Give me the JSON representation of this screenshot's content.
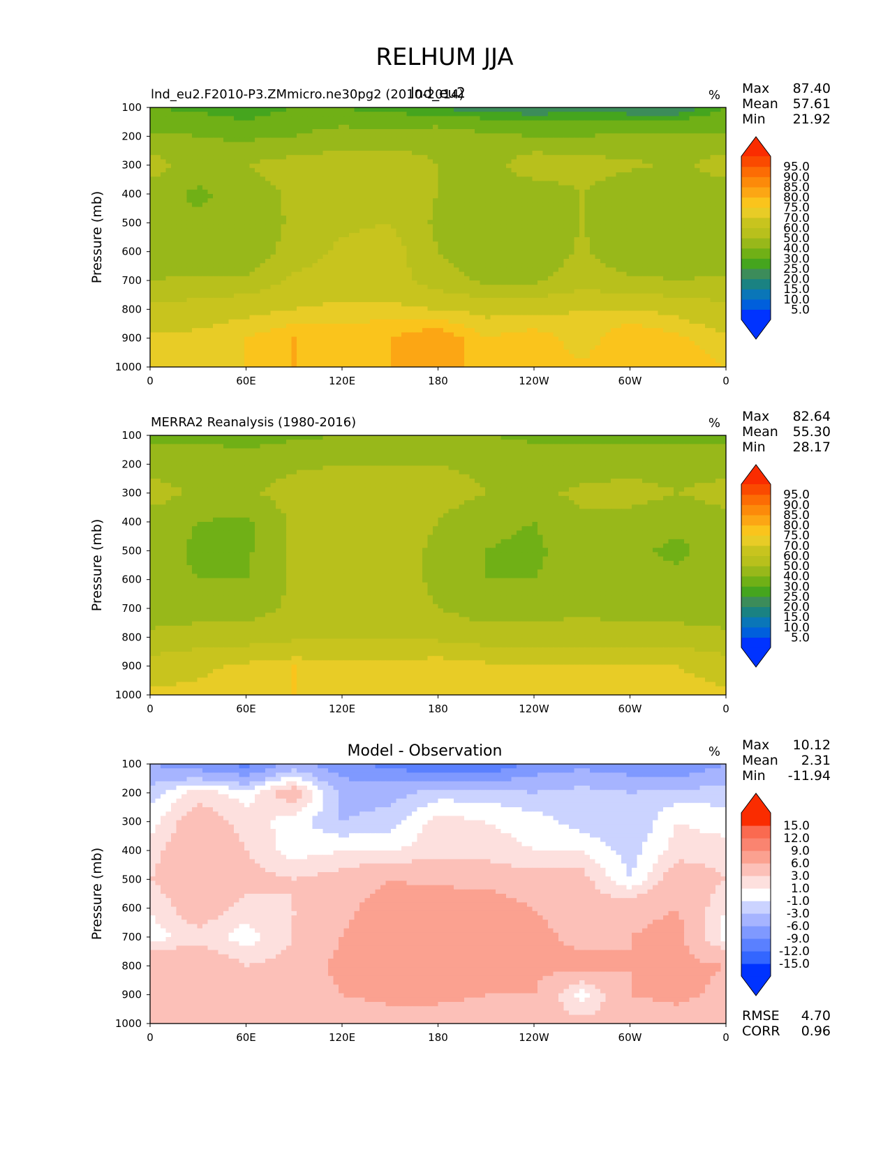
{
  "figure_title": "RELHUM JJA",
  "colors": {
    "abs_levels": [
      "#0033ff",
      "#005fdc",
      "#0a76b8",
      "#1a8282",
      "#3c8c5a",
      "#45a51e",
      "#70b016",
      "#98b81a",
      "#b8c01c",
      "#c8c41e",
      "#e8cc26",
      "#fac41c",
      "#fca614",
      "#fc8a0a",
      "#fc6c04",
      "#fa4a00",
      "#fa2c00"
    ],
    "diff_levels": [
      "#0033ff",
      "#3366ff",
      "#5a80ff",
      "#7f99ff",
      "#a6b4ff",
      "#cbd3ff",
      "#e6eaff",
      "#ffffff",
      "#ffffff",
      "#fde0de",
      "#fcc0b8",
      "#fba190",
      "#fa8470",
      "#fa6a50",
      "#fa5030",
      "#fa2c00"
    ]
  },
  "chart_data": [
    {
      "type": "contourf",
      "panel": "model",
      "title_left": "lnd_eu2.F2010-P3.ZMmicro.ne30pg2 (2010-2014)",
      "title_center": "lnd_eu2",
      "units": "%",
      "ylabel": "Pressure (mb)",
      "xlabel": "",
      "xlim": [
        0,
        360
      ],
      "ylim": [
        1000,
        100
      ],
      "xticks": [
        "0",
        "60E",
        "120E",
        "180",
        "120W",
        "60W",
        "0"
      ],
      "yticks": [
        "100",
        "200",
        "300",
        "400",
        "500",
        "600",
        "700",
        "800",
        "900",
        "1000"
      ],
      "stats": {
        "max_label": "Max",
        "max": "87.40",
        "mean_label": "Mean",
        "mean": "57.61",
        "min_label": "Min",
        "min": "21.92"
      },
      "colorbar_levels": [
        "5.0",
        "10.0",
        "15.0",
        "20.0",
        "25.0",
        "30.0",
        "40.0",
        "50.0",
        "60.0",
        "70.0",
        "75.0",
        "80.0",
        "85.0",
        "90.0",
        "95.0"
      ],
      "field_x": [
        0,
        30,
        60,
        90,
        120,
        150,
        180,
        210,
        240,
        270,
        300,
        330,
        360
      ],
      "field_p": [
        100,
        200,
        300,
        400,
        500,
        600,
        700,
        800,
        900,
        1000
      ],
      "field": [
        [
          30,
          28,
          24,
          30,
          30,
          26,
          24,
          22,
          20,
          22,
          20,
          20,
          30
        ],
        [
          42,
          40,
          38,
          40,
          45,
          45,
          48,
          42,
          40,
          40,
          42,
          42,
          42
        ],
        [
          55,
          45,
          50,
          55,
          55,
          55,
          50,
          45,
          58,
          55,
          52,
          48,
          55
        ],
        [
          45,
          38,
          45,
          52,
          55,
          55,
          50,
          42,
          42,
          50,
          42,
          42,
          45
        ],
        [
          42,
          42,
          42,
          52,
          58,
          60,
          48,
          42,
          42,
          50,
          42,
          42,
          42
        ],
        [
          42,
          42,
          42,
          55,
          62,
          65,
          50,
          42,
          42,
          52,
          42,
          42,
          42
        ],
        [
          50,
          52,
          52,
          62,
          65,
          65,
          55,
          48,
          48,
          55,
          52,
          50,
          52
        ],
        [
          62,
          65,
          68,
          70,
          72,
          72,
          70,
          68,
          68,
          70,
          70,
          68,
          62
        ],
        [
          72,
          72,
          75,
          80,
          78,
          80,
          85,
          75,
          78,
          72,
          80,
          76,
          72
        ],
        [
          75,
          75,
          75,
          80,
          78,
          80,
          80,
          80,
          78,
          76,
          78,
          78,
          75
        ]
      ]
    },
    {
      "type": "contourf",
      "panel": "obs",
      "title_left": "MERRA2 Reanalysis (1980-2016)",
      "units": "%",
      "ylabel": "Pressure (mb)",
      "xlabel": "",
      "xlim": [
        0,
        360
      ],
      "ylim": [
        1000,
        100
      ],
      "xticks": [
        "0",
        "60E",
        "120E",
        "180",
        "120W",
        "60W",
        "0"
      ],
      "yticks": [
        "100",
        "200",
        "300",
        "400",
        "500",
        "600",
        "700",
        "800",
        "900",
        "1000"
      ],
      "stats": {
        "max_label": "Max",
        "max": "82.64",
        "mean_label": "Mean",
        "mean": "55.30",
        "min_label": "Min",
        "min": "28.17"
      },
      "colorbar_levels": [
        "5.0",
        "10.0",
        "15.0",
        "20.0",
        "25.0",
        "30.0",
        "40.0",
        "50.0",
        "60.0",
        "70.0",
        "75.0",
        "80.0",
        "85.0",
        "90.0",
        "95.0"
      ],
      "field_x": [
        0,
        30,
        60,
        90,
        120,
        150,
        180,
        210,
        240,
        270,
        300,
        330,
        360
      ],
      "field_p": [
        100,
        200,
        300,
        400,
        500,
        600,
        700,
        800,
        900,
        1000
      ],
      "field": [
        [
          38,
          38,
          36,
          38,
          40,
          40,
          40,
          40,
          38,
          38,
          38,
          38,
          38
        ],
        [
          45,
          45,
          45,
          48,
          50,
          50,
          50,
          48,
          45,
          45,
          45,
          45,
          45
        ],
        [
          55,
          48,
          48,
          55,
          55,
          55,
          55,
          50,
          48,
          52,
          55,
          50,
          55
        ],
        [
          45,
          40,
          38,
          52,
          55,
          55,
          50,
          42,
          40,
          48,
          45,
          42,
          45
        ],
        [
          45,
          38,
          38,
          52,
          55,
          55,
          48,
          40,
          38,
          45,
          42,
          38,
          45
        ],
        [
          45,
          40,
          40,
          52,
          55,
          55,
          48,
          40,
          40,
          45,
          42,
          42,
          45
        ],
        [
          45,
          45,
          45,
          52,
          55,
          55,
          50,
          45,
          45,
          48,
          45,
          45,
          45
        ],
        [
          52,
          55,
          55,
          58,
          60,
          60,
          58,
          55,
          55,
          55,
          55,
          55,
          52
        ],
        [
          65,
          68,
          72,
          75,
          72,
          72,
          75,
          72,
          72,
          70,
          72,
          70,
          65
        ],
        [
          72,
          72,
          74,
          75,
          74,
          75,
          75,
          74,
          74,
          73,
          74,
          74,
          72
        ]
      ]
    },
    {
      "type": "contourf",
      "panel": "diff",
      "title_center": "Model - Observation",
      "units": "%",
      "ylabel": "Pressure (mb)",
      "xlabel": "",
      "xlim": [
        0,
        360
      ],
      "ylim": [
        1000,
        100
      ],
      "xticks": [
        "0",
        "60E",
        "120E",
        "180",
        "120W",
        "60W",
        "0"
      ],
      "yticks": [
        "100",
        "200",
        "300",
        "400",
        "500",
        "600",
        "700",
        "800",
        "900",
        "1000"
      ],
      "stats": {
        "max_label": "Max",
        "max": "10.12",
        "mean_label": "Mean",
        "mean": "2.31",
        "min_label": "Min",
        "min": "-11.94"
      },
      "colorbar_levels": [
        "-15.0",
        "-12.0",
        "-9.0",
        "-6.0",
        "-3.0",
        "-1.0",
        "1.0",
        "3.0",
        "6.0",
        "9.0",
        "12.0",
        "15.0"
      ],
      "metrics": {
        "rmse_label": "RMSE",
        "rmse": "4.70",
        "corr_label": "CORR",
        "corr": "0.96"
      },
      "field_x": [
        0,
        30,
        60,
        90,
        120,
        150,
        180,
        210,
        240,
        270,
        300,
        330,
        360
      ],
      "field_p": [
        100,
        200,
        300,
        400,
        500,
        600,
        700,
        800,
        900,
        1000
      ],
      "field": [
        [
          -6,
          -8,
          -10,
          -5,
          -8,
          -10,
          -12,
          -12,
          -8,
          -7,
          -8,
          -9,
          -6
        ],
        [
          -2,
          2,
          0,
          5,
          -4,
          -4,
          -2,
          -2,
          -3,
          -2,
          -3,
          -2,
          -2
        ],
        [
          0,
          5,
          2,
          0,
          -3,
          -2,
          2,
          1,
          0,
          -2,
          -3,
          1,
          0
        ],
        [
          2,
          6,
          3,
          0,
          1,
          1,
          2,
          2,
          1,
          1,
          -2,
          2,
          2
        ],
        [
          3,
          6,
          4,
          3,
          4,
          6,
          5,
          5,
          4,
          4,
          -1,
          5,
          3
        ],
        [
          1,
          5,
          2,
          3,
          5,
          8,
          9,
          8,
          6,
          4,
          5,
          6,
          1
        ],
        [
          0,
          2,
          0,
          3,
          6,
          9,
          9,
          8,
          7,
          5,
          6,
          7,
          0
        ],
        [
          6,
          6,
          3,
          4,
          7,
          9,
          8,
          7,
          7,
          7,
          6,
          7,
          6
        ],
        [
          5,
          5,
          3,
          4,
          6,
          7,
          7,
          6,
          6,
          0,
          6,
          7,
          5
        ],
        [
          4,
          4,
          3,
          3,
          4,
          4,
          4,
          4,
          4,
          4,
          4,
          4,
          4
        ]
      ]
    }
  ]
}
